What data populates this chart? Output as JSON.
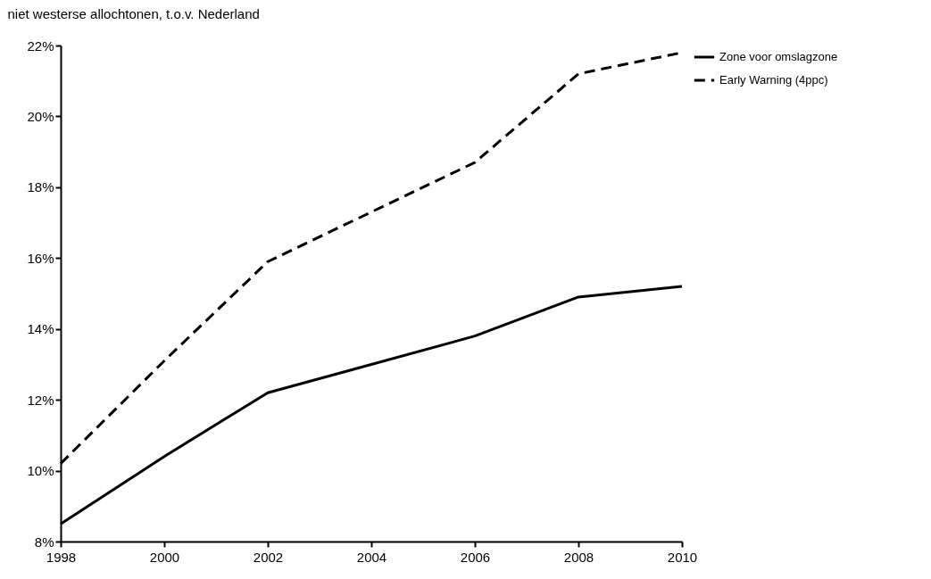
{
  "chart_data": {
    "type": "line",
    "ylabel": "niet westerse allochtonen, t.o.v. Nederland",
    "x": [
      1998,
      2000,
      2002,
      2004,
      2006,
      2008,
      2010
    ],
    "series": [
      {
        "name": "Zone voor omslagzone",
        "color": "#000000",
        "line_style": "solid",
        "values": [
          8.5,
          10.4,
          12.2,
          13.0,
          13.8,
          14.9,
          15.2
        ]
      },
      {
        "name": "Early Warning (4ppc)",
        "color": "#000000",
        "line_style": "dashed",
        "values": [
          10.2,
          13.1,
          15.9,
          17.3,
          18.7,
          21.2,
          21.8
        ]
      }
    ],
    "xlim": [
      1998,
      2010
    ],
    "xticks": [
      1998,
      2000,
      2002,
      2004,
      2006,
      2008,
      2010
    ],
    "ylim": [
      8,
      22
    ],
    "yticks": [
      {
        "value": 8,
        "label": "8%"
      },
      {
        "value": 10,
        "label": "10%"
      },
      {
        "value": 12,
        "label": "12%"
      },
      {
        "value": 14,
        "label": "14%"
      },
      {
        "value": 16,
        "label": "16%"
      },
      {
        "value": 18,
        "label": "18%"
      },
      {
        "value": 20,
        "label": "20%"
      },
      {
        "value": 22,
        "label": "22%"
      }
    ],
    "grid": false,
    "legend": "top right",
    "marker": "none"
  }
}
